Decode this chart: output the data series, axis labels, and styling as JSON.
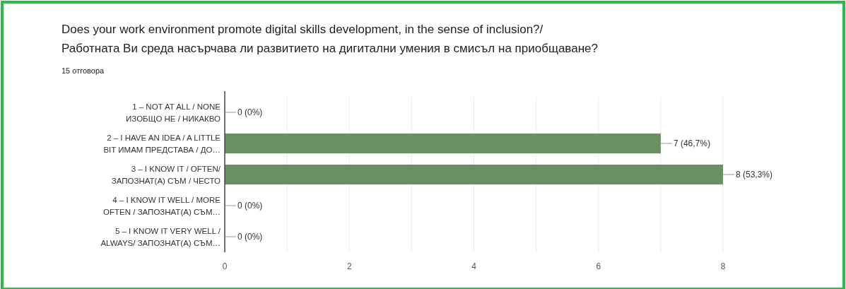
{
  "chart_data": {
    "type": "bar",
    "orientation": "horizontal",
    "title": "Does your work environment promote digital skills development, in the sense of inclusion?/\nРаботната Ви среда насърчава ли развитието на дигитални умения в смисъл на приобщаване?",
    "subtitle": "15 отговора",
    "categories": [
      "1 – NOT AT ALL / NONE\nИЗОБЩО НЕ / НИКАКВО",
      "2 – I HAVE AN IDEA / A LITTLE\nBIT ИМАМ ПРЕДСТАВА / ДО…",
      "3 – I KNOW IT / OFTEN/\nЗАПОЗНАТ(А) СЪМ / ЧЕСТО",
      "4 – I KNOW IT WELL / MORE\nOFTEN / ЗАПОЗНАТ(А) СЪМ…",
      "5 – I KNOW IT VERY WELL /\nALWAYS/ ЗАПОЗНАТ(А) СЪМ…"
    ],
    "values": [
      0,
      7,
      8,
      0,
      0
    ],
    "color": "#6a8f60",
    "value_labels": [
      "0 (0%)",
      "7 (46,7%)",
      "8 (53,3%)",
      "0 (0%)",
      "0 (0%)"
    ],
    "xlim": [
      0,
      8
    ],
    "xticks": [
      0,
      {
        "value": 1,
        "label": null
      },
      2,
      {
        "value": 3,
        "label": null
      },
      4,
      {
        "value": 5,
        "label": null
      },
      6,
      {
        "value": 7,
        "label": null
      },
      8
    ],
    "grid": "x"
  }
}
